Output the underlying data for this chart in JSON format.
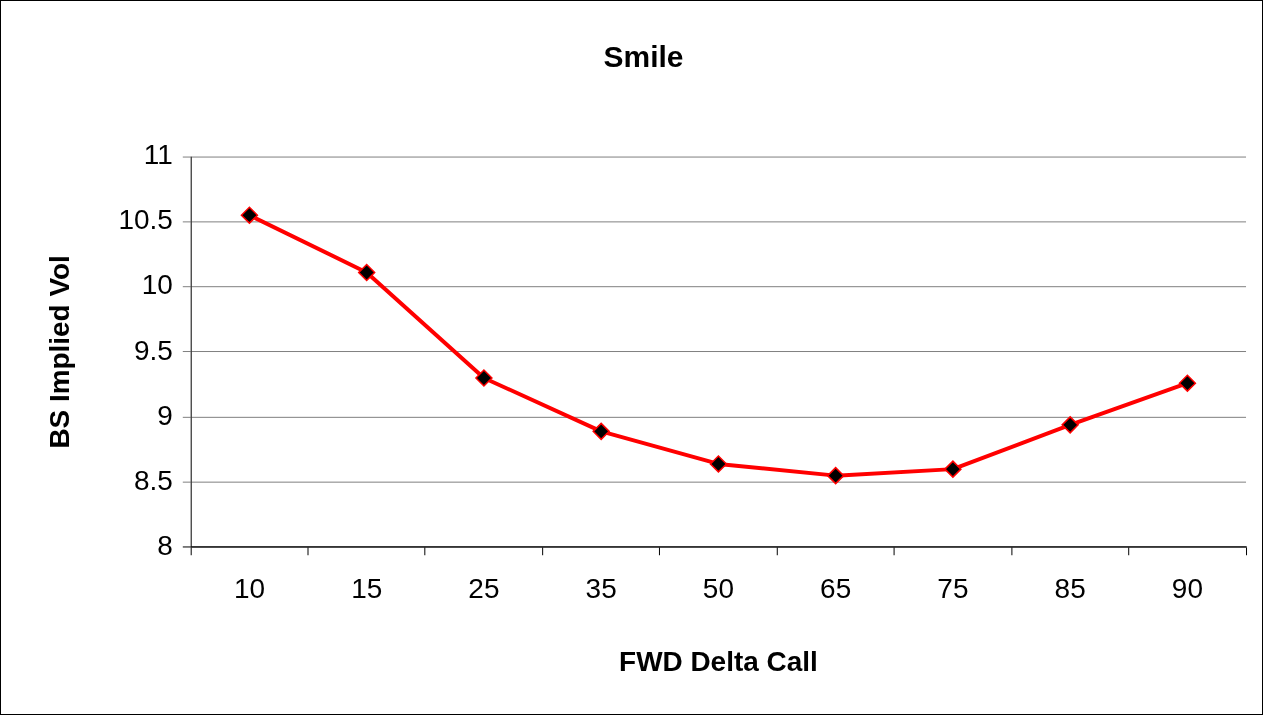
{
  "chart_data": {
    "type": "line",
    "title": "Smile",
    "xlabel": "FWD Delta Call",
    "ylabel": "BS Implied Vol",
    "categories": [
      "10",
      "15",
      "25",
      "35",
      "50",
      "65",
      "75",
      "85",
      "90"
    ],
    "series": [
      {
        "color": "#ff0000",
        "values": [
          10.55,
          10.11,
          9.3,
          8.89,
          8.64,
          8.55,
          8.6,
          8.94,
          9.26
        ]
      }
    ],
    "ylim": [
      8,
      11
    ],
    "yticks": [
      8,
      8.5,
      9,
      9.5,
      10,
      10.5,
      11
    ],
    "grid": "y",
    "legend": false,
    "marker": "diamond",
    "line_style": "solid"
  }
}
